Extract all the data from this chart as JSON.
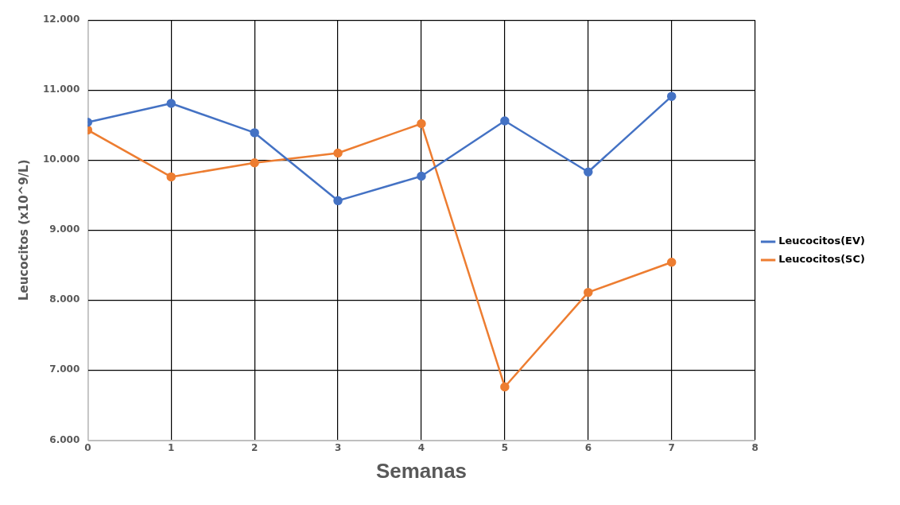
{
  "chart_data": {
    "type": "line",
    "xlabel": "Semanas",
    "ylabel": "Leucocitos (x10^9/L)",
    "x": [
      0,
      1,
      2,
      3,
      4,
      5,
      6,
      7
    ],
    "series": [
      {
        "name": "Leucocitos(EV)",
        "color": "#4472c4",
        "values": [
          10540,
          10810,
          10390,
          9420,
          9770,
          10560,
          9830,
          10910
        ]
      },
      {
        "name": "Leucocitos(SC)",
        "color": "#ed7d31",
        "values": [
          10430,
          9760,
          9960,
          10100,
          10520,
          6760,
          8110,
          8540
        ]
      }
    ],
    "xlim": [
      0,
      8
    ],
    "xticks": [
      0,
      1,
      2,
      3,
      4,
      5,
      6,
      7,
      8
    ],
    "ylim": [
      6000,
      12000
    ],
    "yticks": [
      {
        "value": 6000,
        "label": "6.000"
      },
      {
        "value": 7000,
        "label": "7.000"
      },
      {
        "value": 8000,
        "label": "8.000"
      },
      {
        "value": 9000,
        "label": "9.000"
      },
      {
        "value": 10000,
        "label": "10.000"
      },
      {
        "value": 11000,
        "label": "11.000"
      },
      {
        "value": 12000,
        "label": "12.000"
      }
    ],
    "grid": true,
    "legend": "right",
    "marker": "circle",
    "line_style": "solid"
  }
}
